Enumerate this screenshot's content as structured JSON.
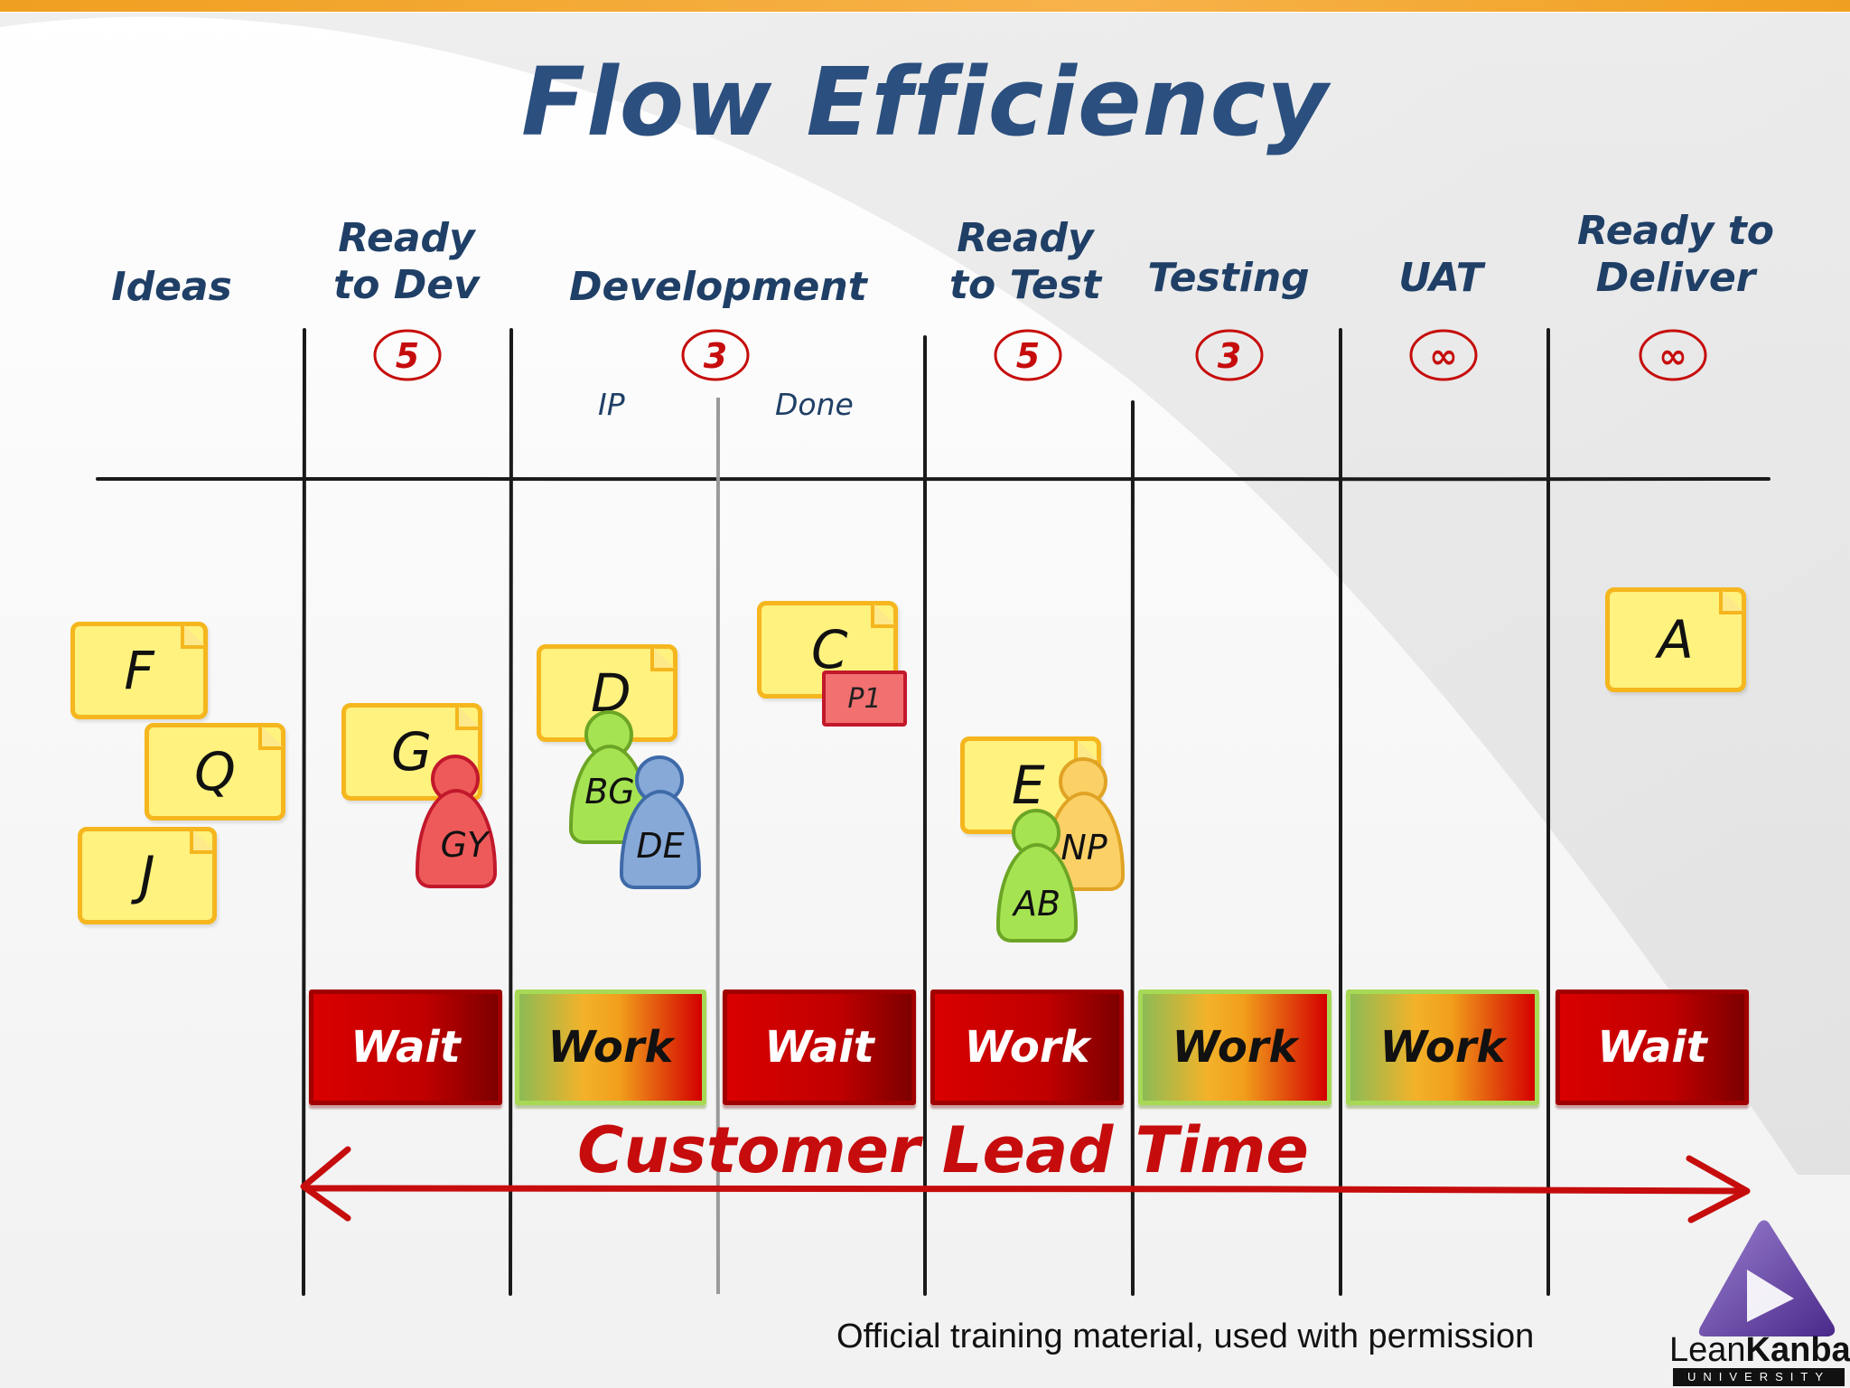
{
  "title": "Flow Efficiency",
  "columns": [
    {
      "label": "Ideas",
      "wip": ""
    },
    {
      "label": "Ready to Dev",
      "wip": "5"
    },
    {
      "label": "Development",
      "wip": "3",
      "sub": [
        "IP",
        "Done"
      ]
    },
    {
      "label": "Ready to Test",
      "wip": "5"
    },
    {
      "label": "Testing",
      "wip": "3"
    },
    {
      "label": "UAT",
      "wip": "∞"
    },
    {
      "label": "Ready to Deliver",
      "wip": "∞"
    }
  ],
  "cards": [
    "F",
    "Q",
    "J",
    "G",
    "D",
    "C",
    "E",
    "A"
  ],
  "tag": "P1",
  "people": [
    "GY",
    "BG",
    "DE",
    "NP",
    "AB"
  ],
  "bars": [
    "Wait",
    "Work",
    "Wait",
    "Work",
    "Work",
    "Work",
    "Wait"
  ],
  "lead_time": "Customer Lead Time",
  "credit": "Official training material, used with permission",
  "logo": {
    "lean": "Lean",
    "kanban": "Kanban",
    "sub": "UNIVERSITY"
  },
  "colors": {
    "wait": "#c00000",
    "work_start": "#8dbb55",
    "title": "#2b4f7e",
    "wip_ring": "#c60c0c",
    "arrow": "#c60c0c"
  }
}
